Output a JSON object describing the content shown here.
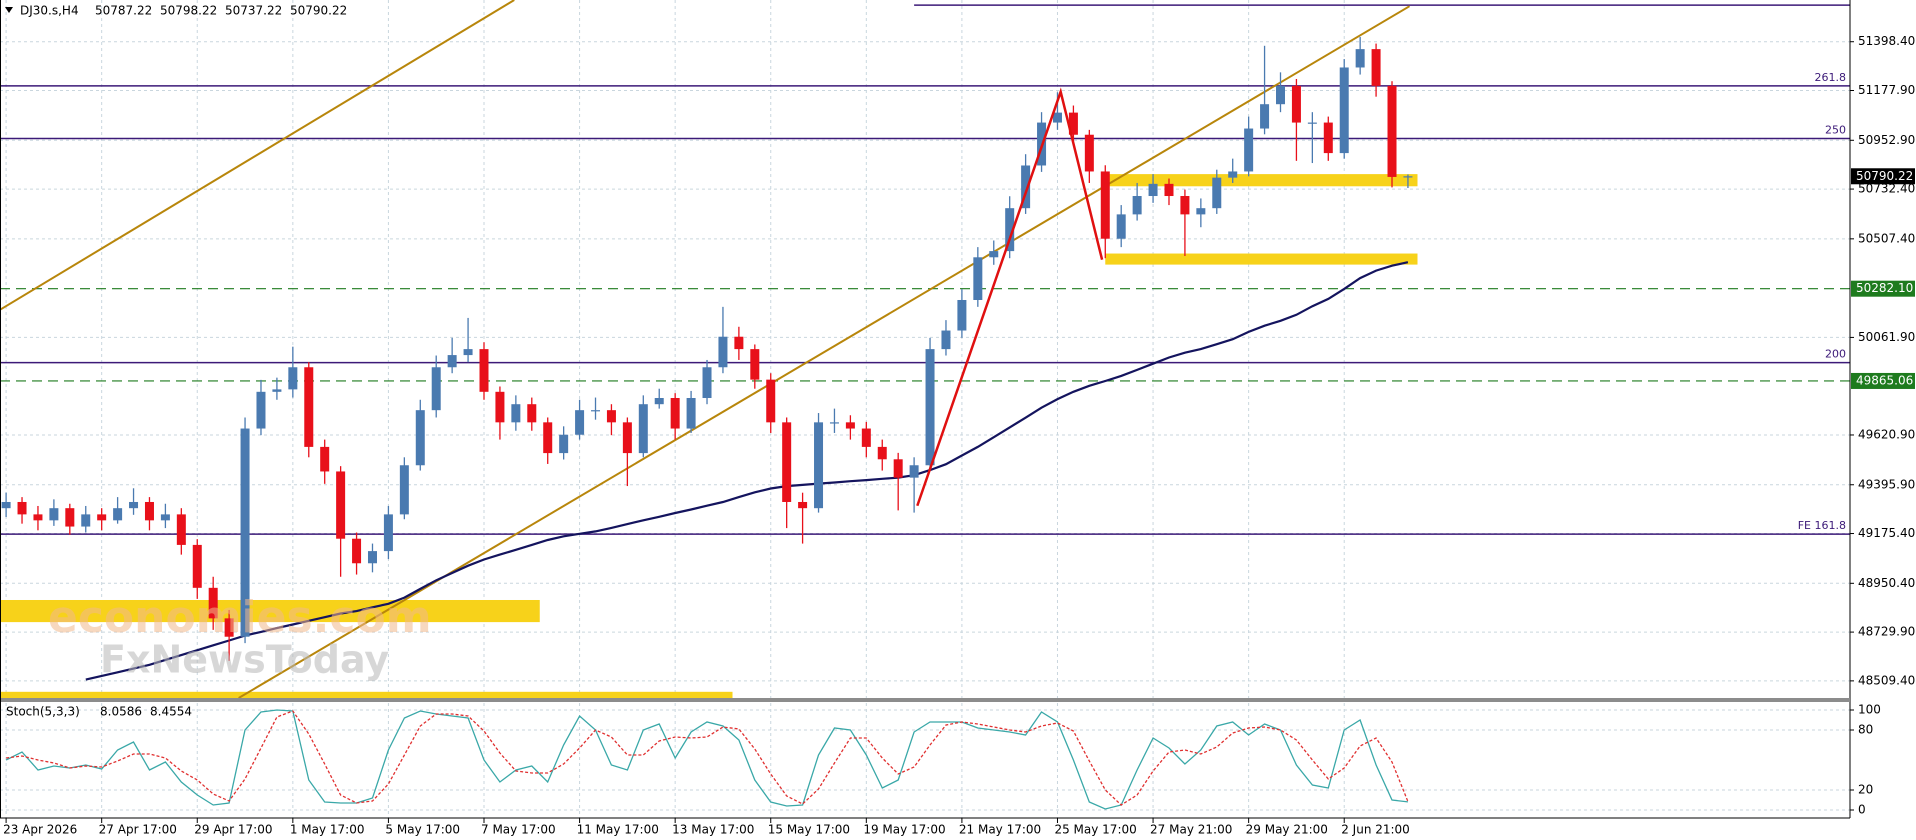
{
  "chart_data": [
    {
      "type": "candlestick",
      "symbol": "DJ30.s,H4",
      "header_values": [
        50787.22,
        50798.22,
        50737.22,
        50790.22
      ],
      "up_color": "#4a7ab0",
      "down_color": "#e8101a",
      "ylim": [
        48432,
        51587
      ],
      "yticks": [
        {
          "value": 51398.4,
          "label": "51398.40"
        },
        {
          "value": 51177.9,
          "label": "51177.90"
        },
        {
          "value": 50952.9,
          "label": "50952.90"
        },
        {
          "value": 50732.4,
          "label": "50732.40"
        },
        {
          "value": 50507.4,
          "label": "50507.40"
        },
        {
          "value": 50061.9,
          "label": "50061.90"
        },
        {
          "value": 49620.9,
          "label": "49620.90"
        },
        {
          "value": 49395.9,
          "label": "49395.90"
        },
        {
          "value": 49175.4,
          "label": "49175.40"
        },
        {
          "value": 48950.4,
          "label": "48950.40"
        },
        {
          "value": 48729.9,
          "label": "48729.90"
        },
        {
          "value": 48509.4,
          "label": "48509.40"
        }
      ],
      "xticks": [
        {
          "value": 0,
          "label": "23 Apr 2026"
        },
        {
          "value": 6,
          "label": "27 Apr 17:00"
        },
        {
          "value": 12,
          "label": "29 Apr 17:00"
        },
        {
          "value": 18,
          "label": "1 May 17:00"
        },
        {
          "value": 24,
          "label": "5 May 17:00"
        },
        {
          "value": 30,
          "label": "7 May 17:00"
        },
        {
          "value": 36,
          "label": "11 May 17:00"
        },
        {
          "value": 42,
          "label": "13 May 17:00"
        },
        {
          "value": 48,
          "label": "15 May 17:00"
        },
        {
          "value": 54,
          "label": "19 May 17:00"
        },
        {
          "value": 60,
          "label": "21 May 17:00"
        },
        {
          "value": 66,
          "label": "25 May 17:00"
        },
        {
          "value": 72,
          "label": "27 May 21:00"
        },
        {
          "value": 78,
          "label": "29 May 21:00"
        },
        {
          "value": 84,
          "label": "2 Jun 21:00"
        }
      ],
      "grid": true,
      "open": [
        49290,
        49318,
        49262,
        49235,
        49290,
        49207,
        49262,
        49235,
        49290,
        49318,
        49235,
        49262,
        49124,
        48930,
        48792,
        48709,
        49650,
        49816,
        49827,
        49927,
        49567,
        49456,
        49152,
        49041,
        49096,
        49262,
        49484,
        49733,
        49927,
        49982,
        50009,
        49816,
        49678,
        49760,
        49678,
        49539,
        49622,
        49733,
        49733,
        49678,
        49539,
        49760,
        49788,
        49650,
        49788,
        49927,
        50065,
        50009,
        49871,
        49678,
        49318,
        49290,
        49678,
        49678,
        49650,
        49567,
        49511,
        49428,
        49484,
        50009,
        50093,
        50231,
        50424,
        50452,
        50646,
        50839,
        51033,
        51078,
        50978,
        50812,
        50508,
        50618,
        50701,
        50756,
        50701,
        50618,
        50646,
        50784,
        50812,
        51006,
        51116,
        51199,
        51033,
        51033,
        50895,
        51282,
        51365,
        51199,
        50787.22
      ],
      "high": [
        49360,
        49340,
        49300,
        49330,
        49310,
        49300,
        49290,
        49340,
        49380,
        49340,
        49310,
        49290,
        49150,
        48980,
        48830,
        49700,
        49870,
        49880,
        50020,
        49950,
        49600,
        49480,
        49180,
        49130,
        49300,
        49520,
        49780,
        49980,
        50060,
        50150,
        50040,
        49840,
        49800,
        49790,
        49700,
        49660,
        49780,
        49790,
        49760,
        49700,
        49800,
        49830,
        49810,
        49820,
        49960,
        50200,
        50110,
        50030,
        49900,
        49700,
        49360,
        49720,
        49740,
        49710,
        49680,
        49600,
        49540,
        49520,
        50060,
        50140,
        50280,
        50470,
        50500,
        50700,
        50890,
        51080,
        51170,
        51110,
        51000,
        50840,
        50660,
        50760,
        50800,
        50780,
        50730,
        50690,
        50820,
        50870,
        51060,
        51380,
        51260,
        51230,
        51080,
        51060,
        51320,
        51420,
        51390,
        51220,
        50798.22
      ],
      "low": [
        49250,
        49220,
        49190,
        49210,
        49170,
        49180,
        49190,
        49220,
        49260,
        49190,
        49200,
        49080,
        48880,
        48740,
        48600,
        48680,
        49620,
        49780,
        49790,
        49520,
        49400,
        48980,
        48990,
        49000,
        49060,
        49240,
        49460,
        49700,
        49900,
        49950,
        49780,
        49600,
        49640,
        49640,
        49490,
        49510,
        49600,
        49690,
        49620,
        49390,
        49520,
        49740,
        49600,
        49630,
        49760,
        49900,
        49960,
        49830,
        49630,
        49200,
        49130,
        49270,
        49630,
        49600,
        49520,
        49460,
        49280,
        49270,
        49460,
        49980,
        50060,
        50200,
        50390,
        50420,
        50620,
        50810,
        51000,
        50940,
        50760,
        50420,
        50470,
        50590,
        50670,
        50660,
        50430,
        50560,
        50620,
        50760,
        50790,
        50980,
        51080,
        50860,
        50850,
        50860,
        50870,
        51250,
        51150,
        50740,
        50737.22
      ],
      "close": [
        49318,
        49262,
        49235,
        49290,
        49207,
        49262,
        49235,
        49290,
        49318,
        49235,
        49262,
        49124,
        48930,
        48792,
        48709,
        49650,
        49816,
        49827,
        49927,
        49567,
        49456,
        49152,
        49041,
        49096,
        49262,
        49484,
        49733,
        49927,
        49982,
        50009,
        49816,
        49678,
        49760,
        49678,
        49539,
        49622,
        49733,
        49733,
        49678,
        49539,
        49760,
        49788,
        49650,
        49788,
        49927,
        50065,
        50009,
        49871,
        49678,
        49318,
        49290,
        49678,
        49678,
        49650,
        49567,
        49511,
        49428,
        49484,
        50009,
        50093,
        50231,
        50424,
        50452,
        50646,
        50839,
        51033,
        51078,
        50978,
        50812,
        50508,
        50618,
        50701,
        50756,
        50701,
        50618,
        50646,
        50784,
        50812,
        51006,
        51116,
        51199,
        51033,
        51033,
        50895,
        51282,
        51365,
        51199,
        50787.22,
        50790.22
      ],
      "ma": {
        "color": "#14145e",
        "values": [
          null,
          null,
          null,
          null,
          null,
          48515,
          48532,
          48548,
          48565,
          48582,
          48604,
          48626,
          48648,
          48670,
          48692,
          48714,
          48731,
          48748,
          48764,
          48781,
          48797,
          48814,
          48825,
          48842,
          48858,
          48886,
          48925,
          48964,
          48997,
          49030,
          49058,
          49080,
          49102,
          49124,
          49146,
          49163,
          49174,
          49185,
          49201,
          49218,
          49235,
          49251,
          49268,
          49284,
          49301,
          49318,
          49340,
          49362,
          49379,
          49390,
          49395,
          49401,
          49406,
          49412,
          49417,
          49423,
          49428,
          49439,
          49462,
          49489,
          49528,
          49567,
          49611,
          49655,
          49699,
          49744,
          49783,
          49816,
          49843,
          49865,
          49888,
          49915,
          49943,
          49971,
          49993,
          50009,
          50031,
          50054,
          50087,
          50115,
          50137,
          50164,
          50203,
          50236,
          50281,
          50330,
          50364,
          50386,
          50402
        ]
      },
      "levels_color": "#3c1a78",
      "levels": [
        {
          "value": 51564,
          "from": 57
        },
        {
          "value": 51199,
          "label": "261.8"
        },
        {
          "value": 50961,
          "label": "250"
        },
        {
          "value": 49948,
          "label": "200"
        },
        {
          "value": 49173,
          "label": "FE 161.8"
        }
      ],
      "marked_prices": [
        {
          "value": 50790.22,
          "label": "50790.22",
          "color": "#000000"
        },
        {
          "value": 50282.1,
          "label": "50282.10",
          "color": "#1e7b1e",
          "dashed": true
        },
        {
          "value": 49865.06,
          "label": "49865.06",
          "color": "#1e7b1e",
          "dashed": true
        }
      ],
      "zones_color": "#f7d21a",
      "zones": [
        {
          "from": 69,
          "to": 88.6,
          "low": 50745,
          "high": 50800
        },
        {
          "from": 69,
          "to": 88.6,
          "low": 50391,
          "high": 50441
        },
        {
          "from": -0.5,
          "to": 33.5,
          "low": 48775,
          "high": 48875
        },
        {
          "from": -0.5,
          "to": 45.6,
          "low": 48432,
          "high": 48460
        }
      ],
      "trendlines_color": "#b8860b",
      "trendlines": [
        [
          [
            -0.4,
            50186
          ],
          [
            31.9,
            51587
          ]
        ],
        [
          [
            14.6,
            48432
          ],
          [
            88.1,
            51559
          ]
        ]
      ],
      "zigzag_color": "#e01010",
      "zigzag": [
        [
          57.2,
          49301
        ],
        [
          66.2,
          51172
        ],
        [
          68.8,
          50413
        ]
      ],
      "watermark": [
        "economies.com",
        "FxNewsToday"
      ]
    },
    {
      "type": "line",
      "title": "Stoch(5,3,3)",
      "ylim": [
        0,
        100
      ],
      "yticks": [
        100,
        80,
        20,
        0
      ],
      "series": [
        {
          "color": "#3aa8a8",
          "values": [
            50,
            58,
            40,
            44,
            42,
            45,
            41,
            60,
            68,
            40,
            48,
            28,
            15,
            5,
            7,
            80,
            98,
            100,
            99,
            30,
            8,
            7,
            7,
            12,
            60,
            92,
            99,
            96,
            94,
            92,
            50,
            28,
            40,
            44,
            28,
            65,
            94,
            80,
            45,
            40,
            80,
            86,
            52,
            78,
            88,
            84,
            70,
            30,
            8,
            4,
            5,
            55,
            82,
            80,
            55,
            22,
            30,
            78,
            88,
            88,
            88,
            82,
            80,
            78,
            75,
            98,
            88,
            50,
            8,
            1,
            5,
            40,
            72,
            62,
            46,
            60,
            84,
            88,
            75,
            86,
            80,
            45,
            25,
            22,
            80,
            90,
            45,
            10,
            8.0586
          ]
        },
        {
          "color": "#e03030",
          "dashed": true,
          "values": [
            52,
            54,
            50,
            47,
            42,
            44,
            43,
            49,
            56,
            56,
            52,
            39,
            30,
            16,
            9,
            31,
            62,
            93,
            99,
            76,
            46,
            15,
            7,
            9,
            26,
            55,
            84,
            96,
            96,
            94,
            79,
            57,
            39,
            37,
            37,
            46,
            62,
            80,
            73,
            55,
            55,
            69,
            73,
            72,
            73,
            83,
            81,
            61,
            36,
            14,
            6,
            21,
            47,
            72,
            72,
            52,
            36,
            43,
            65,
            85,
            88,
            86,
            83,
            80,
            78,
            84,
            87,
            79,
            49,
            20,
            5,
            15,
            39,
            58,
            60,
            56,
            63,
            77,
            82,
            83,
            80,
            70,
            50,
            31,
            42,
            64,
            72,
            48,
            8.4554
          ]
        }
      ]
    }
  ]
}
